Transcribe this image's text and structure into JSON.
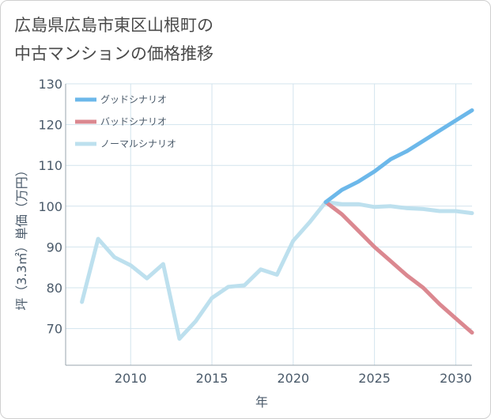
{
  "title": {
    "line1": "広島県広島市東区山根町の",
    "line2": "中古マンションの価格推移"
  },
  "chart_data": {
    "type": "line",
    "xlabel": "年",
    "ylabel": "坪（3.3㎡）単価（万円）",
    "xlim": [
      2006,
      2031
    ],
    "ylim": [
      61,
      130
    ],
    "x_ticks": [
      2010,
      2015,
      2020,
      2025,
      2030
    ],
    "y_ticks": [
      70,
      80,
      90,
      100,
      110,
      120,
      130
    ],
    "grid": true,
    "legend_position": "top-left",
    "series": [
      {
        "name": "グッドシナリオ",
        "color": "#6cb8ea",
        "x": [
          2022,
          2023,
          2024,
          2025,
          2026,
          2027,
          2028,
          2029,
          2030,
          2031
        ],
        "values": [
          101,
          104,
          106,
          108.5,
          111.5,
          113.5,
          116,
          118.5,
          121,
          123.5
        ]
      },
      {
        "name": "バッドシナリオ",
        "color": "#db8890",
        "x": [
          2022,
          2023,
          2024,
          2025,
          2026,
          2027,
          2028,
          2029,
          2030,
          2031
        ],
        "values": [
          101,
          98,
          94,
          90,
          86.5,
          83,
          80,
          76,
          72.5,
          69
        ]
      },
      {
        "name": "ノーマルシナリオ",
        "color": "#bde0ee",
        "x": [
          2007,
          2008,
          2009,
          2010,
          2011,
          2012,
          2013,
          2014,
          2015,
          2016,
          2017,
          2018,
          2019,
          2020,
          2021,
          2022,
          2023,
          2024,
          2025,
          2026,
          2027,
          2028,
          2029,
          2030,
          2031
        ],
        "values": [
          76.5,
          92,
          87.5,
          85.5,
          82.3,
          85.8,
          67.5,
          71.8,
          77.5,
          80.2,
          80.6,
          84.5,
          83.2,
          91.5,
          96,
          101,
          100.5,
          100.5,
          99.8,
          100,
          99.5,
          99.3,
          98.8,
          98.8,
          98.3
        ]
      }
    ]
  }
}
